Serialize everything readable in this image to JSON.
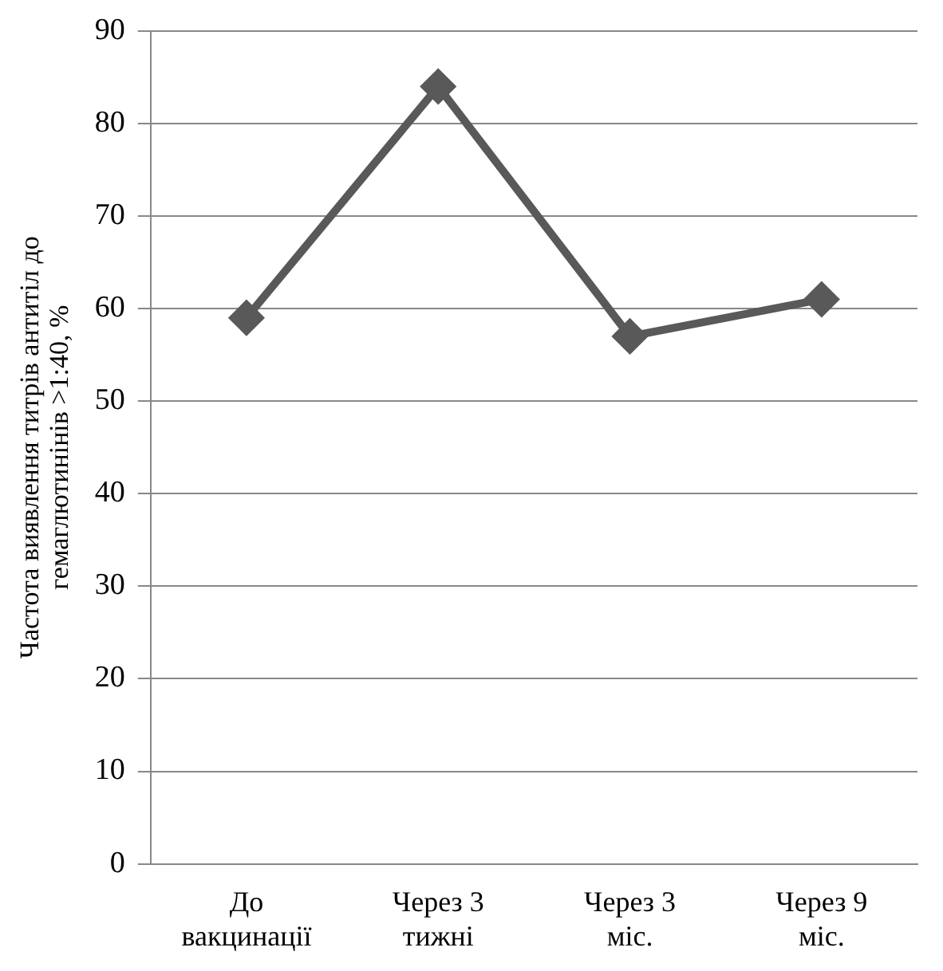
{
  "chart_data": {
    "type": "line",
    "ylabel": "Частота виявлення титрів антитіл до гемаглютинінів >1:40, %",
    "categories": [
      "До вакцинації",
      "Через 3 тижні",
      "Через 3 міс.",
      "Через 9 міс."
    ],
    "series": [
      {
        "color": "#595959",
        "values": [
          59,
          84,
          57,
          61
        ]
      }
    ],
    "ylim": [
      0,
      90
    ],
    "yticks": [
      0,
      10,
      20,
      30,
      40,
      50,
      60,
      70,
      80,
      90
    ],
    "grid": "y",
    "legend": false,
    "marker": "diamond",
    "line_style": "solid"
  }
}
